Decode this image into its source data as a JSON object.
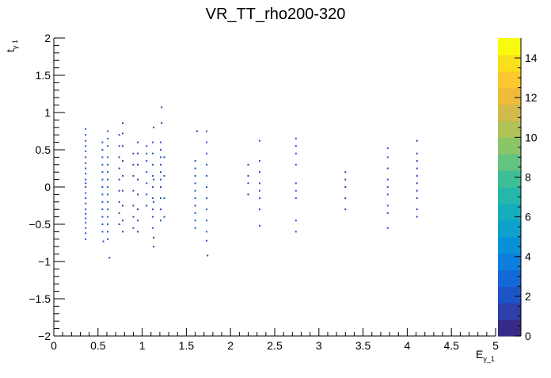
{
  "chart_data": {
    "type": "heatmap",
    "title": "VR_TT_rho200-320",
    "xlabel": {
      "base": "E",
      "sub": "γ_1"
    },
    "ylabel": {
      "base": "t",
      "sub": "γ 1"
    },
    "xlim": [
      0,
      5
    ],
    "ylim": [
      -2,
      2
    ],
    "zlim": [
      0,
      15
    ],
    "x_ticks": [
      "0",
      "0.5",
      "1",
      "1.5",
      "2",
      "2.5",
      "3",
      "3.5",
      "4",
      "4.5",
      "5"
    ],
    "y_ticks": [
      "−2",
      "−1.5",
      "−1",
      "−0.5",
      "0",
      "0.5",
      "1",
      "1.5",
      "2"
    ],
    "z_ticks": [
      "0",
      "2",
      "4",
      "6",
      "8",
      "10",
      "12",
      "14"
    ],
    "grid": false,
    "colorbar": "right",
    "columns": [
      {
        "x": 0.36,
        "y": [
          -0.7,
          -0.62,
          -0.55,
          -0.48,
          -0.42,
          -0.36,
          -0.3,
          -0.22,
          -0.15,
          -0.08,
          0.0,
          0.05,
          0.1,
          0.18,
          0.25,
          0.32,
          0.4,
          0.48,
          0.55,
          0.62,
          0.7,
          0.78
        ],
        "z": 2
      },
      {
        "x": 0.55,
        "y": [
          -0.6,
          -0.5,
          -0.4,
          -0.3,
          -0.2,
          -0.1,
          0.0,
          0.1,
          0.2,
          0.3,
          0.4,
          0.5,
          0.6
        ],
        "z": 2
      },
      {
        "x": 0.56,
        "y": [
          -0.73
        ],
        "z": 1
      },
      {
        "x": 0.61,
        "y": [
          -0.7,
          -0.6,
          -0.5,
          -0.4,
          -0.3,
          -0.2,
          -0.1,
          0.0,
          0.1,
          0.2,
          0.3,
          0.4,
          0.55,
          0.65,
          0.75
        ],
        "z": 2
      },
      {
        "x": 0.63,
        "y": [
          -0.95
        ],
        "z": 1
      },
      {
        "x": 0.74,
        "y": [
          -0.5,
          -0.35,
          -0.2,
          -0.05,
          0.1,
          0.25,
          0.4,
          0.55,
          0.7
        ],
        "z": 1
      },
      {
        "x": 0.78,
        "y": [
          -0.6,
          -0.45,
          -0.25,
          -0.05,
          0.15,
          0.35,
          0.55,
          0.72,
          0.86
        ],
        "z": 1
      },
      {
        "x": 0.9,
        "y": [
          -0.55,
          -0.4,
          -0.25,
          -0.05,
          0.15,
          0.3,
          0.45
        ],
        "z": 1
      },
      {
        "x": 0.95,
        "y": [
          -0.6,
          -0.45,
          -0.3,
          -0.1,
          0.1,
          0.3,
          0.45,
          0.6
        ],
        "z": 1
      },
      {
        "x": 1.05,
        "y": [
          -0.25,
          -0.1,
          0.05,
          0.2,
          0.35,
          0.45,
          0.55
        ],
        "z": 2
      },
      {
        "x": 1.12,
        "y": [
          -0.55,
          -0.4,
          -0.3,
          -0.15,
          0.0,
          0.15,
          0.3,
          0.45,
          0.6
        ],
        "z": 2
      },
      {
        "x": 1.13,
        "y": [
          -0.8,
          -0.68,
          -0.2,
          0.1,
          0.8
        ],
        "z": 1
      },
      {
        "x": 1.21,
        "y": [
          -0.45,
          -0.3,
          -0.15,
          0.0,
          0.1,
          0.2,
          0.3,
          0.4,
          0.5,
          0.6
        ],
        "z": 2
      },
      {
        "x": 1.22,
        "y": [
          0.86,
          1.07
        ],
        "z": 1
      },
      {
        "x": 1.25,
        "y": [
          -0.4,
          -0.15,
          0.15,
          0.4
        ],
        "z": 1
      },
      {
        "x": 1.6,
        "y": [
          -0.55,
          -0.45,
          -0.35,
          -0.25,
          -0.15,
          -0.05,
          0.05,
          0.15,
          0.25,
          0.35
        ],
        "z": 2
      },
      {
        "x": 1.62,
        "y": [
          0.75
        ],
        "z": 1
      },
      {
        "x": 1.73,
        "y": [
          -0.72,
          -0.6,
          -0.45,
          -0.3,
          -0.15,
          0.0,
          0.15,
          0.3,
          0.45,
          0.6,
          0.75
        ],
        "z": 2
      },
      {
        "x": 1.74,
        "y": [
          -0.92
        ],
        "z": 1
      },
      {
        "x": 2.2,
        "y": [
          -0.1,
          0.05,
          0.15,
          0.3
        ],
        "z": 1
      },
      {
        "x": 2.33,
        "y": [
          -0.52,
          -0.3,
          -0.15,
          -0.05,
          0.05,
          0.2,
          0.35,
          0.62
        ],
        "z": 2
      },
      {
        "x": 2.74,
        "y": [
          -0.6,
          -0.45,
          -0.15,
          -0.05,
          0.05,
          0.3,
          0.45,
          0.55,
          0.65
        ],
        "z": 2
      },
      {
        "x": 3.3,
        "y": [
          -0.3,
          -0.15,
          0.0,
          0.1,
          0.2
        ],
        "z": 1
      },
      {
        "x": 3.78,
        "y": [
          -0.55,
          -0.35,
          -0.25,
          -0.1,
          0.0,
          0.1,
          0.25,
          0.4,
          0.52
        ],
        "z": 2
      },
      {
        "x": 4.11,
        "y": [
          -0.4,
          -0.3,
          -0.15,
          -0.05,
          0.05,
          0.15,
          0.25,
          0.35,
          0.45,
          0.62
        ],
        "z": 1
      }
    ]
  },
  "palette": [
    "#352a87",
    "#2d3fa8",
    "#1e55c6",
    "#1369d8",
    "#0c7fdd",
    "#0891d6",
    "#0da1cc",
    "#16adbd",
    "#25b7ab",
    "#3dbe97",
    "#62c47f",
    "#8ac568",
    "#b0c258",
    "#d2bb4a",
    "#eebb3a",
    "#fbc830",
    "#f9e01a",
    "#f9fb0e"
  ]
}
